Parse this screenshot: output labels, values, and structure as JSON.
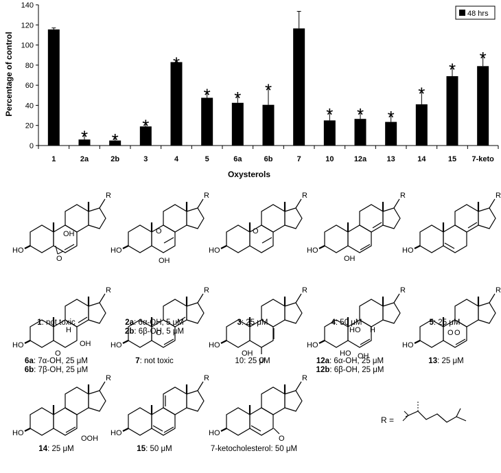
{
  "chart_data": {
    "type": "bar",
    "categories": [
      "1",
      "2a",
      "2b",
      "3",
      "4",
      "5",
      "6a",
      "6b",
      "7",
      "10",
      "12a",
      "13",
      "14",
      "15",
      "7-keto"
    ],
    "series": [
      {
        "name": "48 hrs",
        "values": [
          115.5,
          6,
          5,
          19,
          83,
          47.5,
          42.5,
          40.5,
          116.5,
          25,
          26.5,
          23.5,
          41,
          69,
          79
        ],
        "errors": [
          1.5,
          6,
          4,
          4,
          2,
          6,
          8,
          18,
          17,
          9,
          7.5,
          8,
          14,
          10,
          11
        ],
        "significant": [
          false,
          true,
          true,
          true,
          true,
          true,
          true,
          true,
          false,
          true,
          true,
          true,
          true,
          true,
          true
        ]
      }
    ],
    "ylim": [
      0,
      140
    ],
    "yticks": [
      0,
      20,
      40,
      60,
      80,
      100,
      120,
      140
    ],
    "ylabel": "Percentage of control",
    "xlabel": "Oxysterols",
    "significance_marker": "*",
    "bar_color": "#000000",
    "legend_position": "top-right",
    "grid": false
  },
  "structures": {
    "r_group": "R =",
    "captions": [
      {
        "id": "1",
        "line1_bold": "1",
        "line1_rest": ": not toxic"
      },
      {
        "id": "2",
        "line1_bold": "2a",
        "line1_rest": ": 6α-OH, 5 μM",
        "line2_bold": "2b",
        "line2_rest": ": 6β-OH, 5 μM"
      },
      {
        "id": "3",
        "line1_bold": "3",
        "line1_rest": ": 25 μM"
      },
      {
        "id": "4",
        "line1_bold": "4",
        "line1_rest": ": 50 μM"
      },
      {
        "id": "5",
        "line1_bold": "5",
        "line1_rest": ": 25 μM"
      },
      {
        "id": "6",
        "line1_bold": "6a",
        "line1_rest": ": 7α-OH, 25 μM",
        "line2_bold": "6b",
        "line2_rest": ": 7β-OH, 25 μM"
      },
      {
        "id": "7",
        "line1_bold": "7",
        "line1_rest": ": not toxic"
      },
      {
        "id": "10",
        "line1_bold": "",
        "line1_rest": "10: 25 μM"
      },
      {
        "id": "12",
        "line1_bold": "12a",
        "line1_rest": ": 6α-OH, 25 μM",
        "line2_bold": "12b",
        "line2_rest": ": 6β-OH, 25 μM"
      },
      {
        "id": "13",
        "line1_bold": "13",
        "line1_rest": ": 25 μM"
      },
      {
        "id": "14",
        "line1_bold": "14",
        "line1_rest": ": 25 μM"
      },
      {
        "id": "15",
        "line1_bold": "15",
        "line1_rest": ": 50 μM"
      },
      {
        "id": "7k",
        "line1_bold": "",
        "line1_rest": "7-ketocholesterol: 50 μM"
      }
    ],
    "atom_labels": {
      "r": "R",
      "ho": "HO",
      "oh": "OH",
      "h": "H",
      "o": "O",
      "ooh": "OOH"
    }
  }
}
